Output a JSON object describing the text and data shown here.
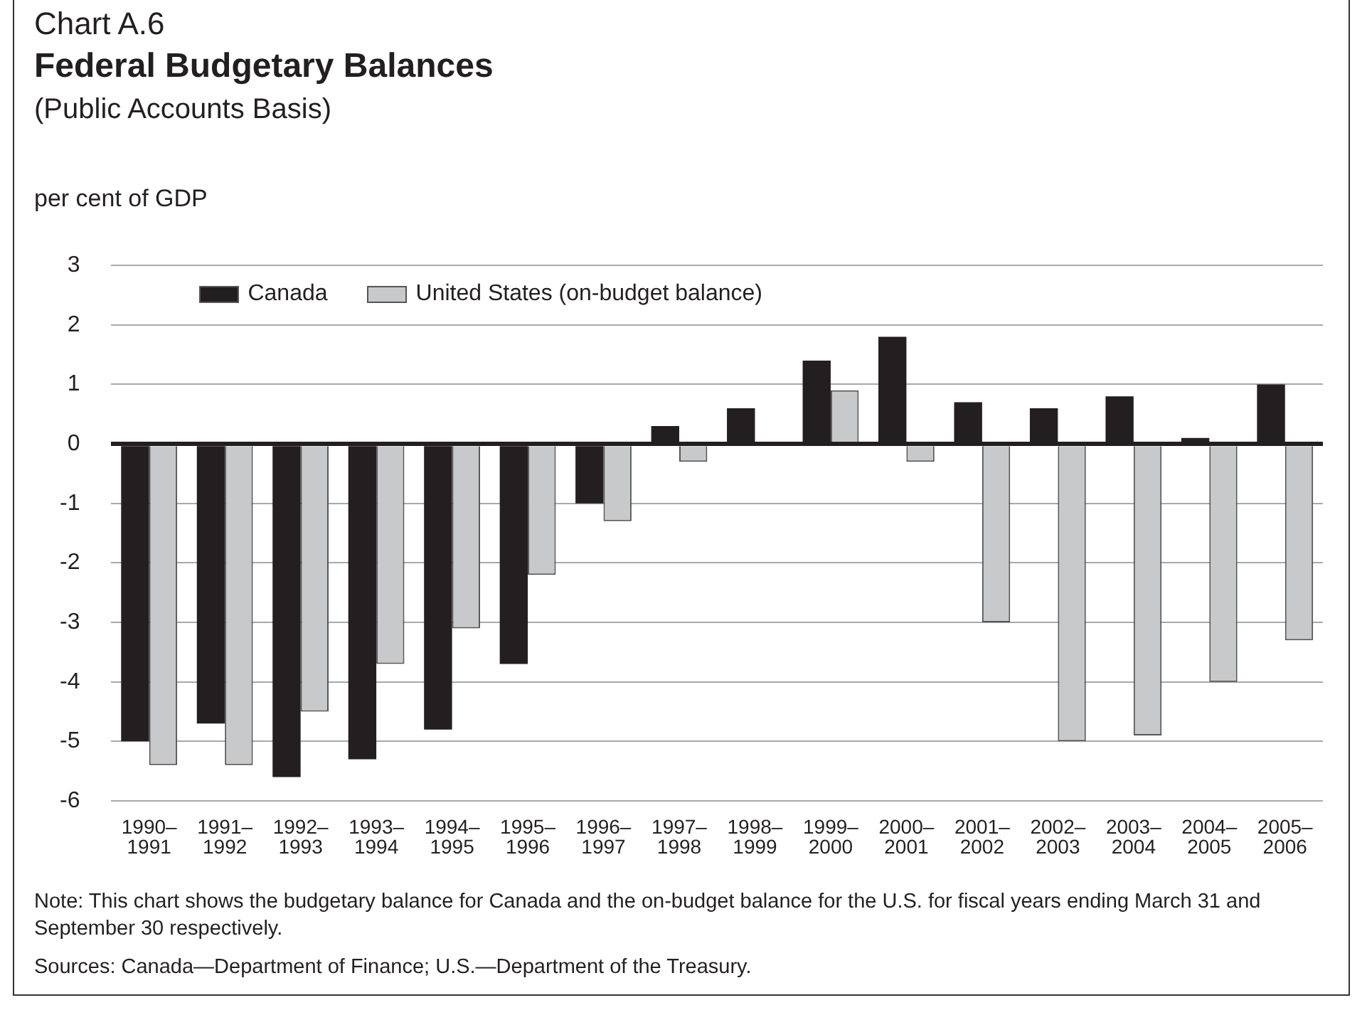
{
  "chart_data": {
    "type": "bar",
    "title": "Federal Budgetary Balances",
    "subtitle": "(Public Accounts Basis)",
    "ylabel": "per cent of GDP",
    "annotations": [
      "Chart A.6",
      "Note: This chart shows the budgetary balance for Canada and the on-budget balance for the U.S. for fiscal years ending March 31 and September 30 respectively.",
      "Sources: Canada—Department of Finance; U.S.—Department of the Treasury."
    ],
    "categories": [
      "1990–1991",
      "1991–1992",
      "1992–1993",
      "1993–1994",
      "1994–1995",
      "1995–1996",
      "1996–1997",
      "1997–1998",
      "1998–1999",
      "1999–2000",
      "2000–2001",
      "2001–2002",
      "2002–2003",
      "2003–2004",
      "2004–2005",
      "2005–2006"
    ],
    "series": [
      {
        "name": "Canada",
        "color": "#231f20",
        "values": [
          -5.0,
          -4.7,
          -5.6,
          -5.3,
          -4.8,
          -3.7,
          -1.0,
          0.3,
          0.6,
          1.4,
          1.8,
          0.7,
          0.6,
          0.8,
          0.1,
          1.0
        ]
      },
      {
        "name": "United States (on-budget balance)",
        "color": "#c8c9ca",
        "values": [
          -5.4,
          -5.4,
          -4.5,
          -3.7,
          -3.1,
          -2.2,
          -1.3,
          -0.3,
          0,
          0.9,
          -0.3,
          -3.0,
          -5.0,
          -4.9,
          -4.0,
          -3.3
        ]
      }
    ],
    "ylim": [
      -6,
      3
    ],
    "yticks": [
      -6,
      -5,
      -4,
      -3,
      -2,
      -1,
      0,
      1,
      2,
      3
    ],
    "grid": "y",
    "legend": "top left"
  }
}
